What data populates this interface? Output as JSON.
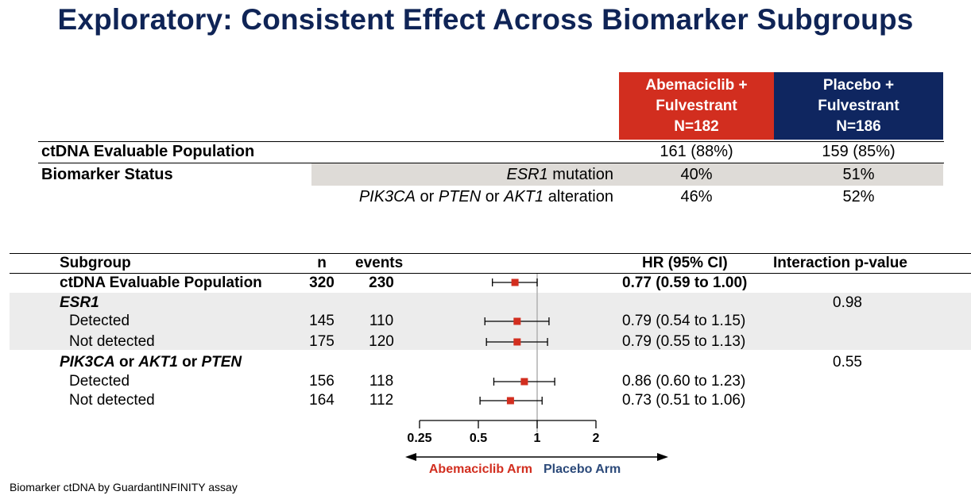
{
  "title": "Exploratory: Consistent Effect Across Biomarker Subgroups",
  "table": {
    "col_abema": {
      "line1": "Abemaciclib +",
      "line2": "Fulvestrant",
      "line3": "N=182",
      "color": "#d22e1f"
    },
    "col_placebo": {
      "line1": "Placebo +",
      "line2": "Fulvestrant",
      "line3": "N=186",
      "color": "#0f2660"
    },
    "rows": [
      {
        "label": "ctDNA Evaluable Population",
        "abema": "161 (88%)",
        "placebo": "159 (85%)"
      },
      {
        "label": "Biomarker Status",
        "sub_label_italic": "ESR1",
        "sub_label_rest": " mutation",
        "abema": "40%",
        "placebo": "51%"
      },
      {
        "sub_label_parts": [
          "PIK3CA",
          " or ",
          "PTEN",
          " or ",
          "AKT1",
          " alteration"
        ],
        "abema": "46%",
        "placebo": "52%"
      }
    ]
  },
  "forest": {
    "headers": {
      "subgroup": "Subgroup",
      "n": "n",
      "events": "events",
      "hr": "HR (95% CI)",
      "interaction": "Interaction p-value"
    },
    "group_esr1": {
      "label": "ESR1",
      "p": "0.98"
    },
    "group_pik": {
      "label_parts": [
        "PIK3CA",
        " or ",
        "AKT1",
        " or ",
        "PTEN"
      ],
      "p": "0.55"
    },
    "arrows": {
      "left": "Abemaciclib Arm",
      "right": "Placebo Arm",
      "left_color": "#d22e1f",
      "right_color": "#2c4a7a"
    }
  },
  "chart_data": {
    "type": "forest",
    "x_scale": "log",
    "x_ticks": [
      "0.25",
      "0.5",
      "1",
      "2"
    ],
    "reference_line": 1,
    "rows": [
      {
        "label": "ctDNA Evaluable Population",
        "n": "320",
        "events": "230",
        "hr_text": "0.77 (0.59 to 1.00)",
        "hr": 0.77,
        "lo": 0.59,
        "hi": 1.0,
        "bold": true
      },
      {
        "label": "Detected",
        "n": "145",
        "events": "110",
        "hr_text": "0.79 (0.54 to 1.15)",
        "hr": 0.79,
        "lo": 0.54,
        "hi": 1.15
      },
      {
        "label": "Not detected",
        "n": "175",
        "events": "120",
        "hr_text": "0.79 (0.55 to 1.13)",
        "hr": 0.79,
        "lo": 0.55,
        "hi": 1.13
      },
      {
        "label": "Detected",
        "n": "156",
        "events": "118",
        "hr_text": "0.86 (0.60 to 1.23)",
        "hr": 0.86,
        "lo": 0.6,
        "hi": 1.23
      },
      {
        "label": "Not detected",
        "n": "164",
        "events": "112",
        "hr_text": "0.73 (0.51 to 1.06)",
        "hr": 0.73,
        "lo": 0.51,
        "hi": 1.06
      }
    ],
    "marker_color": "#d22e1f"
  },
  "footnote": "Biomarker ctDNA by GuardantINFINITY assay"
}
